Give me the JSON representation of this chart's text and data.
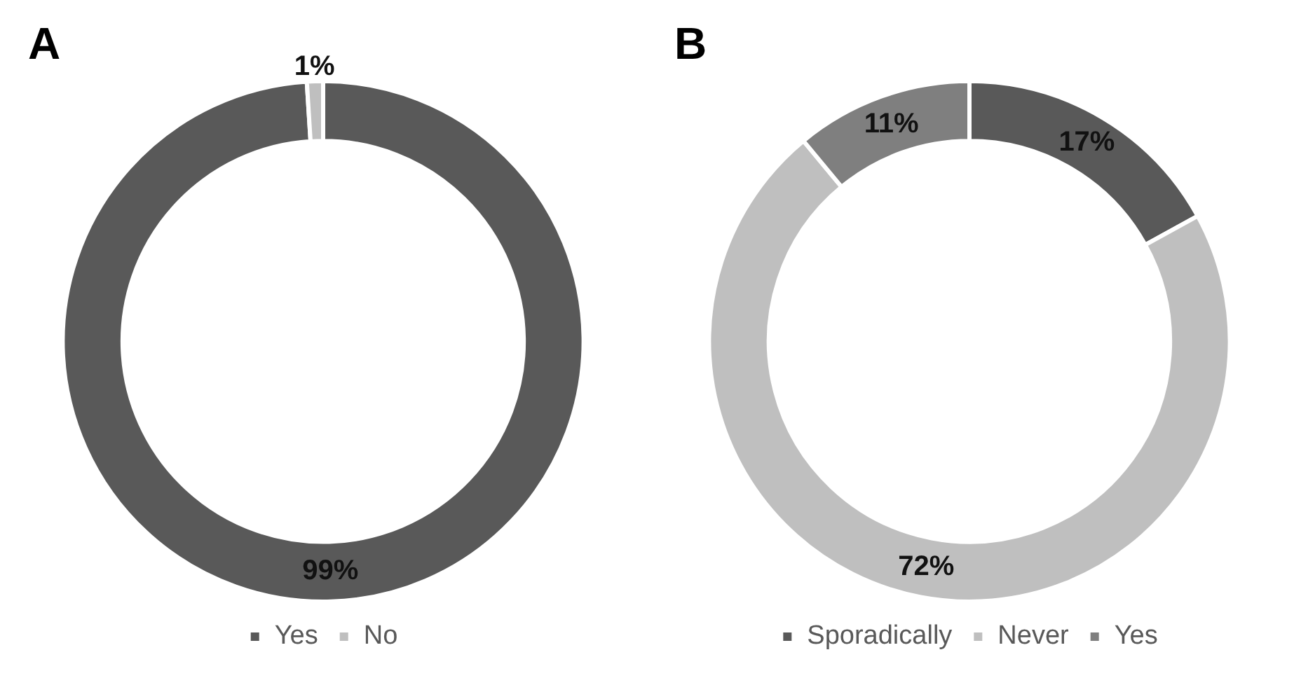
{
  "chart_data": [
    {
      "type": "donut",
      "title": "A",
      "categories": [
        "Yes",
        "No"
      ],
      "values": [
        99,
        1
      ],
      "colors": [
        "#595959",
        "#bfbfbf"
      ],
      "value_labels": [
        "99%",
        "1%"
      ],
      "legend": "bottom"
    },
    {
      "type": "donut",
      "title": "B",
      "categories": [
        "Sporadically",
        "Never",
        "Yes"
      ],
      "values": [
        17,
        72,
        11
      ],
      "colors": [
        "#595959",
        "#bfbfbf",
        "#7f7f7f"
      ],
      "value_labels": [
        "17%",
        "72%",
        "11%"
      ],
      "legend": "bottom"
    }
  ]
}
